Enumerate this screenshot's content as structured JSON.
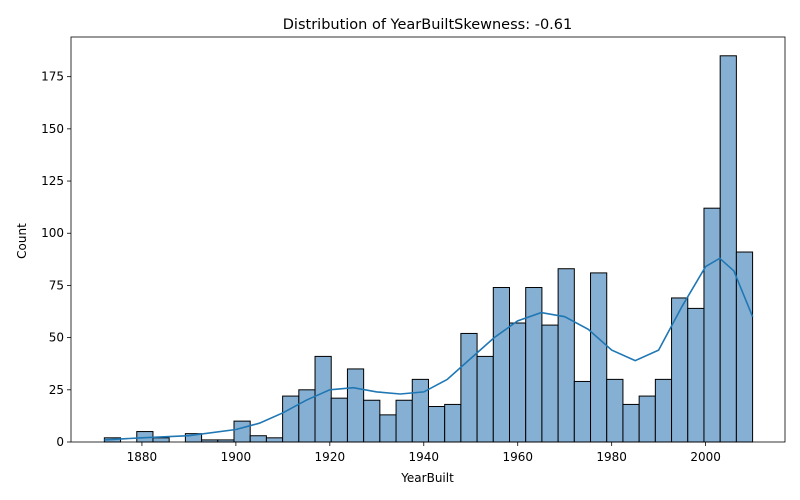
{
  "chart_data": {
    "type": "bar",
    "title": "Distribution of YearBuiltSkewness: -0.61",
    "xlabel": "YearBuilt",
    "ylabel": "Count",
    "xlim": [
      1864.9,
      2016.9
    ],
    "ylim": [
      0,
      194
    ],
    "xticks": [
      1880,
      1900,
      1920,
      1940,
      1960,
      1980,
      2000
    ],
    "yticks": [
      0,
      25,
      50,
      75,
      100,
      125,
      150,
      175
    ],
    "bins": {
      "start": 1872,
      "width": 3.45,
      "counts": [
        2,
        0,
        5,
        2,
        0,
        4,
        1,
        1,
        10,
        3,
        2,
        22,
        25,
        41,
        21,
        35,
        20,
        13,
        20,
        30,
        17,
        18,
        52,
        41,
        74,
        57,
        74,
        56,
        83,
        29,
        81,
        30,
        18,
        22,
        30,
        69,
        64,
        112,
        185,
        91
      ]
    },
    "kde": {
      "x": [
        1872,
        1880,
        1890,
        1900,
        1905,
        1910,
        1915,
        1920,
        1925,
        1930,
        1935,
        1940,
        1945,
        1950,
        1955,
        1960,
        1965,
        1970,
        1975,
        1980,
        1985,
        1990,
        1995,
        2000,
        2003,
        2006,
        2010
      ],
      "y": [
        1,
        2,
        3,
        6,
        9,
        14,
        20,
        25,
        26,
        24,
        23,
        24,
        30,
        40,
        50,
        58,
        62,
        60,
        54,
        44,
        39,
        44,
        65,
        84,
        88,
        82,
        60
      ]
    },
    "colors": {
      "bar_fill": "#86b0d3",
      "bar_edge": "#000000",
      "kde_line": "#1f77b4"
    },
    "grid": false,
    "legend": "none"
  }
}
